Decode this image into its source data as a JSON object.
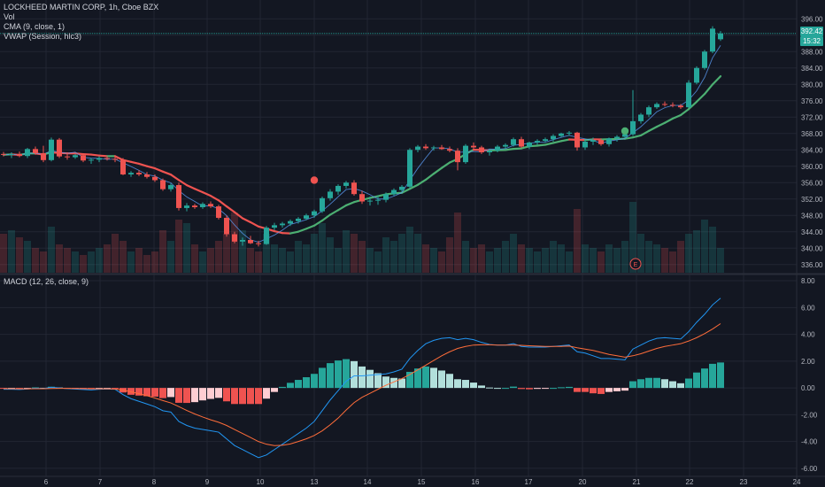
{
  "header": {
    "symbol_line": "LOCKHEED MARTIN CORP, 1h, Cboe BZX",
    "volume_label": "Vol",
    "cma_label": "CMA (9, close, 1)",
    "vwap_label": "VWAP (Session, hlc3)",
    "macd_label": "MACD (12, 26, close, 9)"
  },
  "price_axis": {
    "ticks": [
      "396.00",
      "392.00",
      "388.00",
      "384.00",
      "380.00",
      "376.00",
      "372.00",
      "368.00",
      "364.00",
      "360.00",
      "356.00",
      "352.00",
      "348.00",
      "344.00",
      "340.00",
      "336.00"
    ],
    "last_price": "392.42",
    "countdown": "15:32"
  },
  "macd_axis": {
    "ticks": [
      "8.00",
      "6.00",
      "4.00",
      "2.00",
      "0.00",
      "-2.00",
      "-4.00",
      "-6.00"
    ]
  },
  "time_axis": {
    "ticks": [
      "6",
      "7",
      "8",
      "9",
      "10",
      "13",
      "14",
      "15",
      "16",
      "17",
      "20",
      "21",
      "22",
      "23",
      "24"
    ]
  },
  "event_marker": "E",
  "colors": {
    "background": "#131722",
    "grid": "#222633",
    "up": "#26a69a",
    "down": "#ef5350",
    "cma_up": "#4caf72",
    "cma_down": "#ef5350",
    "vwap": "#5b9cf6",
    "macd_line": "#2196f3",
    "signal_line": "#ff6d3a",
    "hist_up_strong": "#26a69a",
    "hist_up_weak": "#b2dfdb",
    "hist_down_strong": "#ef5350",
    "hist_down_weak": "#ffcdd2"
  },
  "chart_data": [
    {
      "type": "candlestick",
      "title": "LOCKHEED MARTIN CORP, 1h, Cboe BZX",
      "x_ticks": [
        "6",
        "7",
        "8",
        "9",
        "10",
        "13",
        "14",
        "15",
        "16",
        "17",
        "20",
        "21",
        "22",
        "23",
        "24"
      ],
      "ylim": [
        334,
        398
      ],
      "grid": true,
      "last_price": 392.42,
      "candles": [
        [
          363.0,
          363.5,
          362.4,
          362.8
        ],
        [
          362.8,
          363.4,
          362.0,
          363.0
        ],
        [
          363.0,
          363.6,
          362.2,
          362.5
        ],
        [
          362.5,
          364.5,
          362.0,
          364.2
        ],
        [
          364.2,
          364.8,
          362.8,
          363.2
        ],
        [
          363.2,
          365.0,
          361.0,
          361.5
        ],
        [
          361.5,
          367.0,
          361.2,
          366.5
        ],
        [
          366.5,
          366.9,
          362.0,
          362.4
        ],
        [
          362.4,
          363.4,
          361.6,
          362.2
        ],
        [
          362.2,
          363.0,
          361.8,
          362.7
        ],
        [
          362.7,
          363.0,
          361.0,
          361.4
        ],
        [
          361.4,
          362.0,
          360.6,
          361.6
        ],
        [
          361.6,
          362.4,
          361.0,
          362.0
        ],
        [
          362.0,
          362.6,
          361.4,
          361.8
        ],
        [
          361.8,
          362.4,
          361.0,
          361.6
        ],
        [
          361.6,
          362.0,
          357.8,
          358.0
        ],
        [
          358.0,
          358.8,
          357.4,
          358.4
        ],
        [
          358.4,
          359.0,
          357.6,
          358.0
        ],
        [
          358.0,
          358.6,
          357.0,
          357.4
        ],
        [
          357.4,
          358.0,
          356.2,
          356.6
        ],
        [
          356.6,
          357.0,
          354.0,
          354.4
        ],
        [
          354.4,
          355.8,
          353.8,
          355.4
        ],
        [
          355.4,
          356.0,
          349.2,
          349.8
        ],
        [
          349.8,
          351.0,
          349.0,
          350.4
        ],
        [
          350.4,
          350.8,
          349.6,
          350.0
        ],
        [
          350.0,
          351.2,
          349.6,
          350.8
        ],
        [
          350.8,
          351.4,
          349.8,
          350.2
        ],
        [
          350.2,
          350.6,
          347.0,
          347.4
        ],
        [
          347.4,
          348.0,
          342.8,
          343.4
        ],
        [
          343.4,
          344.0,
          341.2,
          341.6
        ],
        [
          341.6,
          342.6,
          340.6,
          342.0
        ],
        [
          342.0,
          343.0,
          341.0,
          341.2
        ],
        [
          341.2,
          341.8,
          340.4,
          341.0
        ],
        [
          341.0,
          345.4,
          340.8,
          345.0
        ],
        [
          345.0,
          346.2,
          344.4,
          345.6
        ],
        [
          345.6,
          346.4,
          345.0,
          346.0
        ],
        [
          346.0,
          347.0,
          345.4,
          346.6
        ],
        [
          346.6,
          347.6,
          346.0,
          347.2
        ],
        [
          347.2,
          348.4,
          346.8,
          348.0
        ],
        [
          348.0,
          349.4,
          347.4,
          349.0
        ],
        [
          349.0,
          352.6,
          348.6,
          352.2
        ],
        [
          352.2,
          354.4,
          351.6,
          353.8
        ],
        [
          353.8,
          355.6,
          353.0,
          355.2
        ],
        [
          355.2,
          356.4,
          354.6,
          356.0
        ],
        [
          356.0,
          356.6,
          352.8,
          353.2
        ],
        [
          353.2,
          354.0,
          350.8,
          351.4
        ],
        [
          351.4,
          352.6,
          350.4,
          351.6
        ],
        [
          351.6,
          352.8,
          350.6,
          351.8
        ],
        [
          351.8,
          353.6,
          351.2,
          353.2
        ],
        [
          353.2,
          354.6,
          352.8,
          354.2
        ],
        [
          354.2,
          355.4,
          353.8,
          355.0
        ],
        [
          355.0,
          364.4,
          354.6,
          364.0
        ],
        [
          364.0,
          365.2,
          363.4,
          364.8
        ],
        [
          364.8,
          365.4,
          364.0,
          364.4
        ],
        [
          364.4,
          365.0,
          363.8,
          364.6
        ],
        [
          364.6,
          365.2,
          364.0,
          364.2
        ],
        [
          364.2,
          364.8,
          363.4,
          363.8
        ],
        [
          363.8,
          364.4,
          359.0,
          361.0
        ],
        [
          361.0,
          365.4,
          360.6,
          365.0
        ],
        [
          365.0,
          365.8,
          364.2,
          364.6
        ],
        [
          364.6,
          365.0,
          363.0,
          363.4
        ],
        [
          363.4,
          364.0,
          362.6,
          363.8
        ],
        [
          363.8,
          365.2,
          363.4,
          364.8
        ],
        [
          364.8,
          365.6,
          364.2,
          365.2
        ],
        [
          365.2,
          367.0,
          364.8,
          366.6
        ],
        [
          366.6,
          367.2,
          364.4,
          364.8
        ],
        [
          364.8,
          366.0,
          364.2,
          365.8
        ],
        [
          365.8,
          366.6,
          365.2,
          366.2
        ],
        [
          366.2,
          367.0,
          365.8,
          366.6
        ],
        [
          366.6,
          367.8,
          366.0,
          367.4
        ],
        [
          367.4,
          368.2,
          367.0,
          368.0
        ],
        [
          368.0,
          368.6,
          367.4,
          368.2
        ],
        [
          368.2,
          368.4,
          363.8,
          364.6
        ],
        [
          364.6,
          366.4,
          364.0,
          366.0
        ],
        [
          366.0,
          367.0,
          365.2,
          366.4
        ],
        [
          366.4,
          366.8,
          365.0,
          365.4
        ],
        [
          365.4,
          367.0,
          364.8,
          366.8
        ],
        [
          366.8,
          367.6,
          366.0,
          367.2
        ],
        [
          367.2,
          368.2,
          366.8,
          367.8
        ],
        [
          367.8,
          378.6,
          367.4,
          371.0
        ],
        [
          371.0,
          373.0,
          370.4,
          372.6
        ],
        [
          372.6,
          374.8,
          372.0,
          374.4
        ],
        [
          374.4,
          375.6,
          374.0,
          375.2
        ],
        [
          375.2,
          375.8,
          374.6,
          375.0
        ],
        [
          375.0,
          375.6,
          374.4,
          374.8
        ],
        [
          374.8,
          375.2,
          374.0,
          374.4
        ],
        [
          374.4,
          381.0,
          374.2,
          380.4
        ],
        [
          380.4,
          384.4,
          380.0,
          384.0
        ],
        [
          384.0,
          388.4,
          383.6,
          388.0
        ],
        [
          388.0,
          394.2,
          387.6,
          393.6
        ],
        [
          391.0,
          393.0,
          390.6,
          392.42
        ]
      ],
      "volume_up_scale": [
        0.55,
        0.6,
        0.5,
        0.45,
        0.35,
        0.3,
        0.65,
        0.4,
        0.35,
        0.3,
        0.25,
        0.3,
        0.35,
        0.4,
        0.55,
        0.45,
        0.3,
        0.35,
        0.25,
        0.3,
        0.6,
        0.45,
        0.75,
        0.7,
        0.4,
        0.3,
        0.35,
        0.45,
        0.55,
        0.85,
        0.6,
        0.35,
        0.3,
        0.55,
        0.4,
        0.35,
        0.3,
        0.45,
        0.4,
        0.55,
        0.7,
        0.5,
        0.35,
        0.6,
        0.55,
        0.45,
        0.35,
        0.3,
        0.5,
        0.45,
        0.55,
        0.65,
        0.55,
        0.4,
        0.35,
        0.3,
        0.5,
        0.85,
        0.45,
        0.35,
        0.4,
        0.3,
        0.35,
        0.45,
        0.55,
        0.4,
        0.35,
        0.3,
        0.35,
        0.45,
        0.4,
        0.3,
        0.9,
        0.4,
        0.35,
        0.3,
        0.4,
        0.35,
        0.45,
        1.0,
        0.55,
        0.45,
        0.4,
        0.35,
        0.3,
        0.45,
        0.55,
        0.6,
        0.75,
        0.65,
        0.35
      ]
    },
    {
      "type": "line",
      "title": "MACD (12, 26, close, 9)",
      "ylim": [
        -6.6,
        8.4
      ],
      "y_ticks": [
        8,
        6,
        4,
        2,
        0,
        -2,
        -4,
        -6
      ],
      "series": [
        {
          "name": "",
          "values": [
            -0.1,
            -0.1,
            -0.12,
            -0.08,
            -0.02,
            -0.05,
            0.05,
            0.0,
            -0.05,
            -0.08,
            -0.12,
            -0.15,
            -0.1,
            -0.08,
            -0.1,
            -0.5,
            -0.8,
            -1.0,
            -1.2,
            -1.4,
            -1.7,
            -1.8,
            -2.5,
            -2.8,
            -3.0,
            -3.1,
            -3.2,
            -3.3,
            -3.8,
            -4.3,
            -4.6,
            -4.9,
            -5.2,
            -5.0,
            -4.6,
            -4.2,
            -3.8,
            -3.4,
            -3.0,
            -2.5,
            -1.7,
            -0.9,
            -0.2,
            0.5,
            0.9,
            0.9,
            0.95,
            1.0,
            1.05,
            1.2,
            1.4,
            2.2,
            2.8,
            3.3,
            3.55,
            3.7,
            3.75,
            3.6,
            3.7,
            3.6,
            3.4,
            3.25,
            3.2,
            3.2,
            3.3,
            3.1,
            3.05,
            3.05,
            3.05,
            3.1,
            3.15,
            3.2,
            2.7,
            2.6,
            2.4,
            2.2,
            2.2,
            2.15,
            2.1,
            2.9,
            3.2,
            3.5,
            3.7,
            3.75,
            3.7,
            3.65,
            4.2,
            4.9,
            5.5,
            6.2,
            6.7
          ]
        },
        {
          "name": "",
          "values": [
            -0.05,
            -0.06,
            -0.07,
            -0.07,
            -0.06,
            -0.06,
            -0.04,
            -0.03,
            -0.03,
            -0.04,
            -0.05,
            -0.07,
            -0.07,
            -0.07,
            -0.08,
            -0.16,
            -0.29,
            -0.43,
            -0.58,
            -0.75,
            -0.94,
            -1.12,
            -1.39,
            -1.68,
            -1.94,
            -2.17,
            -2.38,
            -2.56,
            -2.8,
            -3.1,
            -3.4,
            -3.7,
            -4.0,
            -4.2,
            -4.3,
            -4.28,
            -4.18,
            -4.0,
            -3.8,
            -3.55,
            -3.2,
            -2.75,
            -2.25,
            -1.65,
            -1.1,
            -0.7,
            -0.4,
            -0.1,
            0.2,
            0.45,
            0.7,
            1.0,
            1.35,
            1.7,
            2.05,
            2.4,
            2.7,
            2.95,
            3.1,
            3.2,
            3.22,
            3.22,
            3.2,
            3.2,
            3.2,
            3.18,
            3.15,
            3.12,
            3.1,
            3.1,
            3.1,
            3.12,
            3.0,
            2.9,
            2.8,
            2.65,
            2.5,
            2.4,
            2.3,
            2.4,
            2.55,
            2.75,
            2.95,
            3.1,
            3.2,
            3.3,
            3.5,
            3.75,
            4.05,
            4.4,
            4.8
          ]
        }
      ],
      "histogram": [
        -0.05,
        -0.04,
        -0.05,
        -0.01,
        0.04,
        0.01,
        0.09,
        0.03,
        -0.02,
        -0.04,
        -0.07,
        -0.08,
        -0.03,
        -0.01,
        -0.02,
        -0.34,
        -0.51,
        -0.57,
        -0.62,
        -0.65,
        -0.76,
        -0.68,
        -1.11,
        -1.12,
        -1.06,
        -0.93,
        -0.82,
        -0.74,
        -1.0,
        -1.2,
        -1.2,
        -1.2,
        -1.2,
        -0.8,
        -0.3,
        0.08,
        0.38,
        0.6,
        0.8,
        1.05,
        1.5,
        1.85,
        2.05,
        2.15,
        2.0,
        1.6,
        1.35,
        1.1,
        0.85,
        0.75,
        0.7,
        1.2,
        1.45,
        1.6,
        1.5,
        1.3,
        1.05,
        0.65,
        0.6,
        0.4,
        0.18,
        0.03,
        0.0,
        0.0,
        0.1,
        -0.08,
        -0.1,
        -0.07,
        -0.05,
        0.0,
        0.05,
        0.08,
        -0.3,
        -0.3,
        -0.4,
        -0.45,
        -0.3,
        -0.25,
        -0.2,
        0.5,
        0.65,
        0.75,
        0.75,
        0.65,
        0.5,
        0.35,
        0.7,
        1.15,
        1.45,
        1.8,
        1.9
      ]
    }
  ]
}
